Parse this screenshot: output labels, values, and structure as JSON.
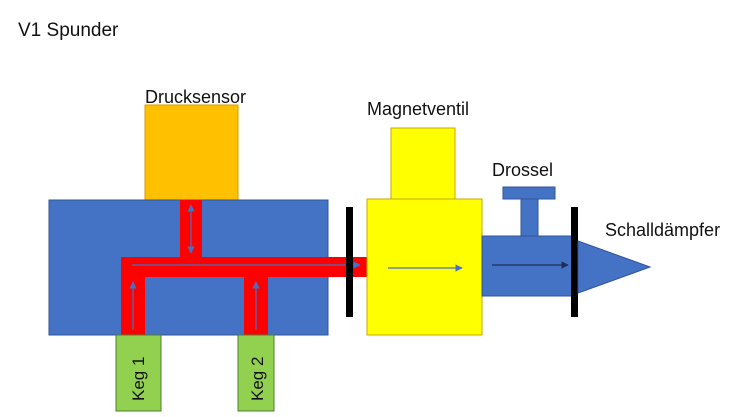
{
  "title": "V1 Spunder",
  "labels": {
    "pressure_sensor": "Drucksensor",
    "solenoid_valve": "Magnetventil",
    "throttle": "Drossel",
    "muffler": "Schalldämpfer",
    "keg1": "Keg 1",
    "keg2": "Keg 2"
  },
  "colors": {
    "block_blue": "#4472c4",
    "channel_red": "#ff0000",
    "sensor_orange": "#ffc000",
    "valve_yellow": "#ffff00",
    "keg_green": "#92d050",
    "flange_black": "#000000"
  }
}
